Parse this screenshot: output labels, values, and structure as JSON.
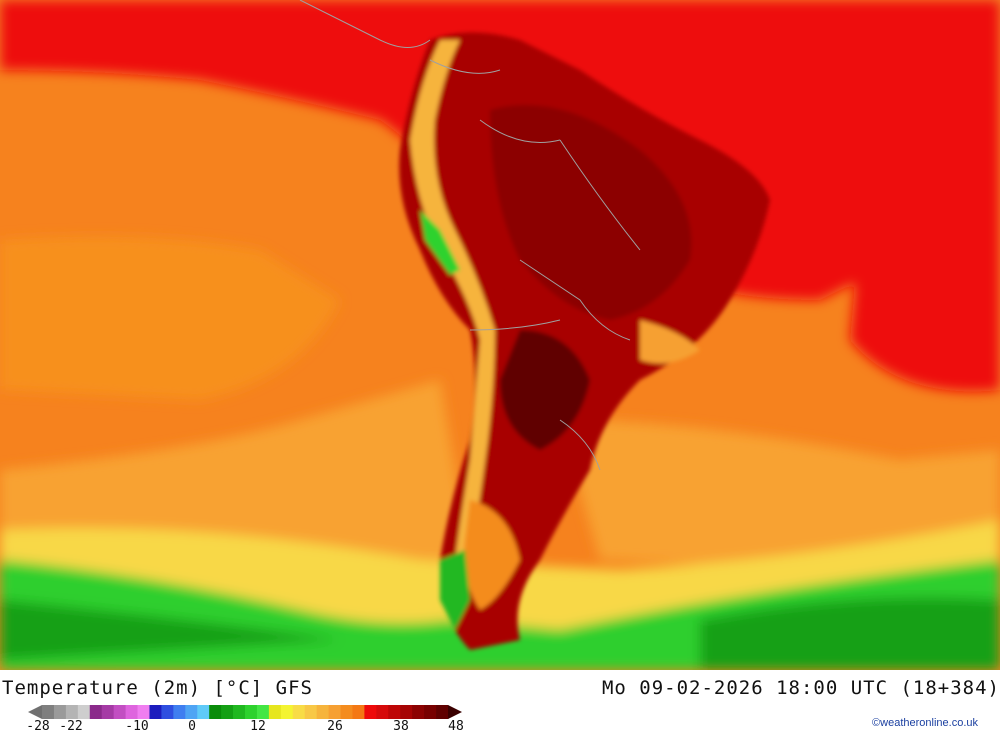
{
  "map": {
    "title": "Temperature (2m) [°C] GFS",
    "run": "Mo 09-02-2026 18:00 UTC (18+384)",
    "variable": "Temperature (2m)",
    "unit": "°C",
    "model": "GFS",
    "region": "South America"
  },
  "legend": {
    "ticks": [
      {
        "label": "-28",
        "value": -28
      },
      {
        "label": "-22",
        "value": -22
      },
      {
        "label": "-10",
        "value": -10
      },
      {
        "label": "0",
        "value": 0
      },
      {
        "label": "12",
        "value": 12
      },
      {
        "label": "26",
        "value": 26
      },
      {
        "label": "38",
        "value": 38
      },
      {
        "label": "48",
        "value": 48
      }
    ],
    "colors": [
      "#7f7f7f",
      "#9a9a9a",
      "#b4b4b4",
      "#cecece",
      "#8b2a8b",
      "#a53aa5",
      "#c24ec2",
      "#de64de",
      "#f07ef0",
      "#1c1cbe",
      "#2e4ee0",
      "#3f7ef0",
      "#4ea4f4",
      "#5fcaf8",
      "#0a8c0a",
      "#14a014",
      "#20b820",
      "#2ed22e",
      "#44e644",
      "#e6e61e",
      "#f4f432",
      "#f8dc46",
      "#f8c846",
      "#f6b43c",
      "#f6a032",
      "#f48c1e",
      "#f47814",
      "#ee0a0a",
      "#d60a0a",
      "#be0606",
      "#a60404",
      "#8c0202",
      "#780000",
      "#600000"
    ]
  },
  "credit": "©weatheronline.co.uk"
}
